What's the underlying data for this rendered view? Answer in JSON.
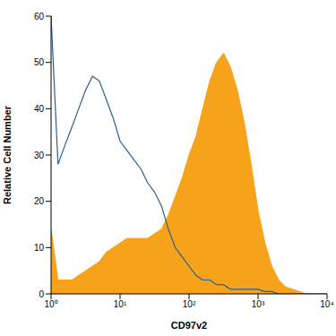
{
  "chart_data": {
    "type": "area",
    "x_label": "CD97v2",
    "y_label": "Relative Cell Number",
    "log": "x",
    "grid": false,
    "xlim": [
      1,
      10000
    ],
    "xticks": [
      {
        "value": 1,
        "label": "10⁰"
      },
      {
        "value": 10,
        "label": "10¹"
      },
      {
        "value": 100,
        "label": "10²"
      },
      {
        "value": 1000,
        "label": "10³"
      },
      {
        "value": 10000,
        "label": "10⁴"
      }
    ],
    "ylim": [
      0,
      60
    ],
    "yticks": [
      0,
      10,
      20,
      30,
      40,
      50,
      60
    ],
    "x": [
      1,
      1.26,
      1.58,
      2,
      2.51,
      3.16,
      3.98,
      5.01,
      6.31,
      7.94,
      10,
      12.6,
      15.8,
      20,
      25.1,
      31.6,
      39.8,
      50.1,
      63.1,
      79.4,
      100,
      126,
      158,
      200,
      251,
      316,
      398,
      501,
      631,
      794,
      1000,
      1260,
      1580,
      2000,
      2510,
      3160,
      3980,
      5010,
      6310,
      7940,
      10000
    ],
    "series": [
      {
        "type": "area",
        "color": "#f7a21b",
        "values": [
          14,
          3,
          3,
          3,
          4,
          5,
          6,
          7,
          9,
          10,
          11,
          12,
          12,
          12,
          12,
          13,
          14,
          17,
          21,
          25,
          30,
          34,
          40,
          46,
          50,
          52,
          49,
          44,
          37,
          28,
          18,
          11,
          6,
          3,
          1.5,
          1,
          0.5,
          0,
          0,
          0,
          0
        ]
      },
      {
        "type": "line",
        "color": "#2a5f8a",
        "values": [
          60,
          28,
          32,
          36,
          40,
          44,
          47,
          46,
          42,
          38,
          33,
          31,
          29,
          27,
          24,
          22,
          19,
          14,
          10,
          8,
          6,
          4,
          3,
          3,
          2,
          2,
          1,
          1,
          1,
          1,
          1,
          0.5,
          0.5,
          0,
          0,
          0,
          0,
          0,
          0,
          0,
          0
        ]
      }
    ]
  }
}
